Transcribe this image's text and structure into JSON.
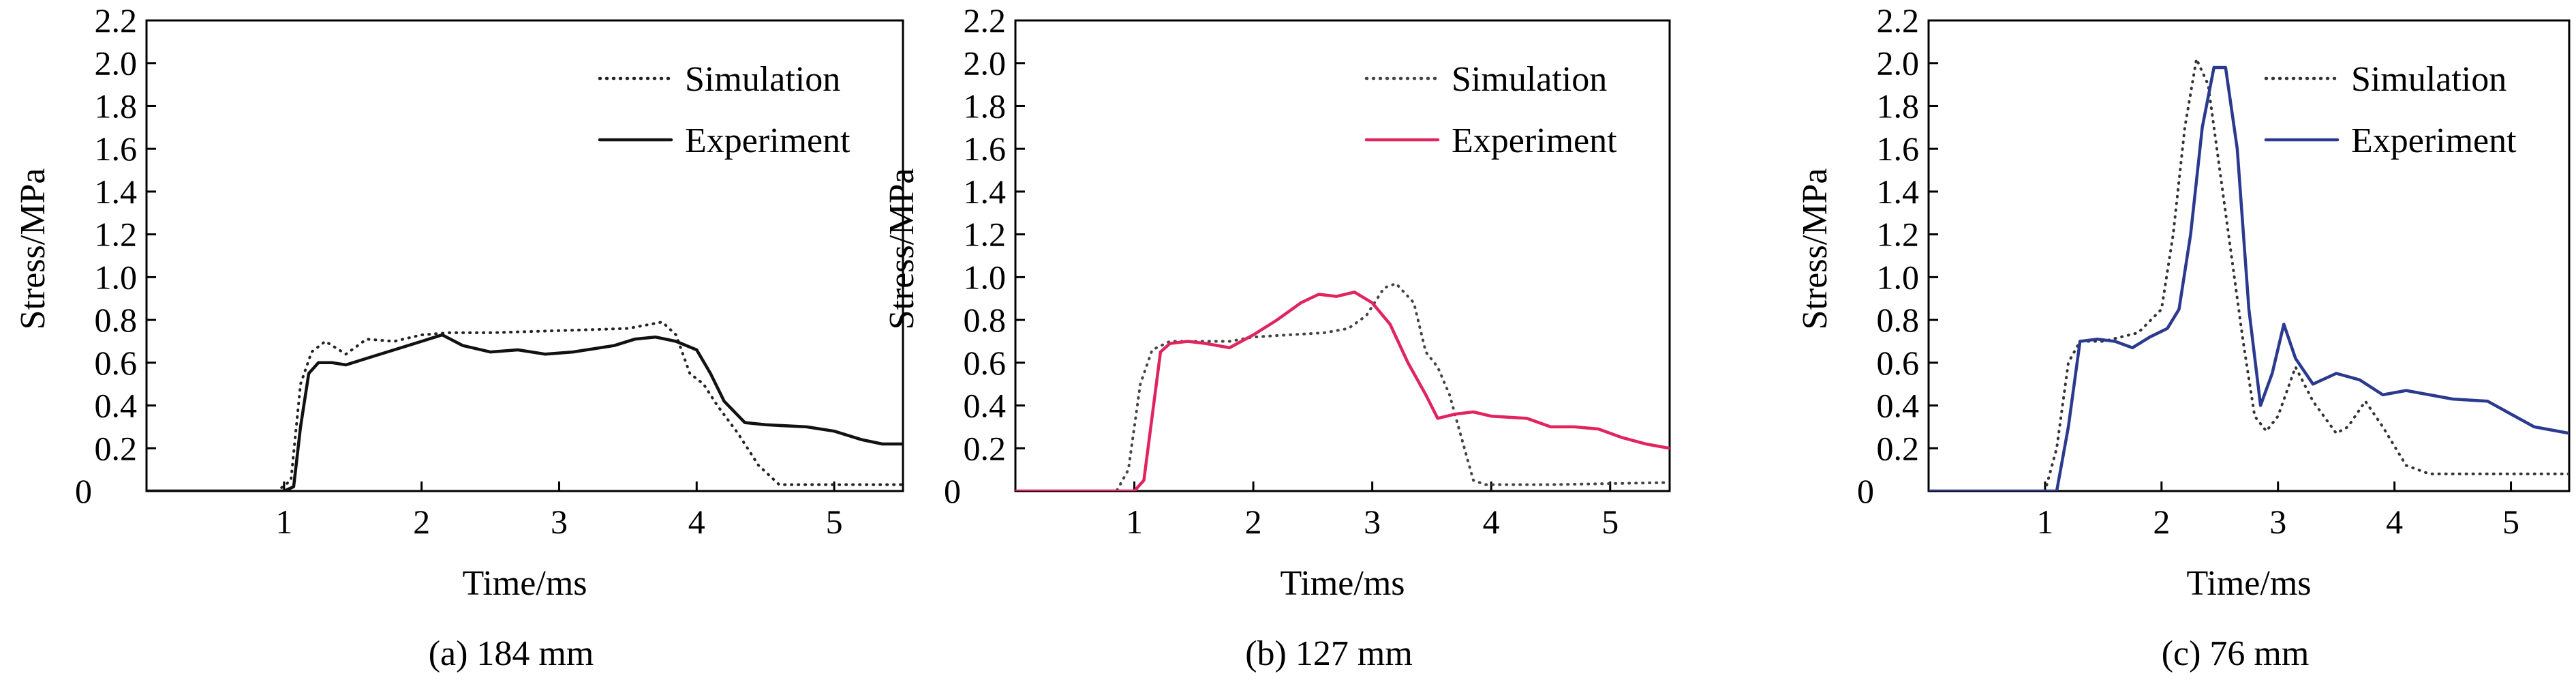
{
  "chart_data": [
    {
      "type": "line",
      "caption": "(a) 184 mm",
      "xlabel": "Time/ms",
      "ylabel": "Stress/MPa",
      "xlim": [
        0,
        5.5
      ],
      "ylim": [
        0,
        2.2
      ],
      "xticks": [
        0,
        1,
        2,
        3,
        4,
        5
      ],
      "yticks": [
        0.2,
        0.4,
        0.6,
        0.8,
        1.0,
        1.2,
        1.4,
        1.6,
        1.8,
        2.0,
        2.2
      ],
      "legend_position": "top-right",
      "series": [
        {
          "name": "Simulation",
          "style": "dotted",
          "color": "#222222",
          "points": [
            [
              0,
              0
            ],
            [
              0.95,
              0
            ],
            [
              1.05,
              0.05
            ],
            [
              1.12,
              0.5
            ],
            [
              1.2,
              0.65
            ],
            [
              1.3,
              0.7
            ],
            [
              1.45,
              0.64
            ],
            [
              1.6,
              0.71
            ],
            [
              1.8,
              0.7
            ],
            [
              2.0,
              0.73
            ],
            [
              2.2,
              0.74
            ],
            [
              2.5,
              0.74
            ],
            [
              3.0,
              0.75
            ],
            [
              3.5,
              0.76
            ],
            [
              3.75,
              0.79
            ],
            [
              3.85,
              0.73
            ],
            [
              3.95,
              0.55
            ],
            [
              4.05,
              0.5
            ],
            [
              4.15,
              0.4
            ],
            [
              4.3,
              0.27
            ],
            [
              4.45,
              0.12
            ],
            [
              4.6,
              0.03
            ],
            [
              5.0,
              0.03
            ],
            [
              5.5,
              0.03
            ]
          ]
        },
        {
          "name": "Experiment",
          "style": "solid",
          "color": "#111111",
          "points": [
            [
              0,
              0
            ],
            [
              1.0,
              0
            ],
            [
              1.07,
              0.02
            ],
            [
              1.12,
              0.3
            ],
            [
              1.18,
              0.55
            ],
            [
              1.25,
              0.6
            ],
            [
              1.35,
              0.6
            ],
            [
              1.45,
              0.59
            ],
            [
              1.6,
              0.62
            ],
            [
              1.8,
              0.66
            ],
            [
              2.0,
              0.7
            ],
            [
              2.15,
              0.73
            ],
            [
              2.3,
              0.68
            ],
            [
              2.5,
              0.65
            ],
            [
              2.7,
              0.66
            ],
            [
              2.9,
              0.64
            ],
            [
              3.1,
              0.65
            ],
            [
              3.4,
              0.68
            ],
            [
              3.55,
              0.71
            ],
            [
              3.7,
              0.72
            ],
            [
              3.85,
              0.7
            ],
            [
              4.0,
              0.66
            ],
            [
              4.1,
              0.55
            ],
            [
              4.2,
              0.42
            ],
            [
              4.35,
              0.32
            ],
            [
              4.5,
              0.31
            ],
            [
              4.8,
              0.3
            ],
            [
              5.0,
              0.28
            ],
            [
              5.2,
              0.24
            ],
            [
              5.35,
              0.22
            ],
            [
              5.5,
              0.22
            ]
          ]
        }
      ]
    },
    {
      "type": "line",
      "caption": "(b) 127 mm",
      "xlabel": "Time/ms",
      "ylabel": "Stress/MPa",
      "xlim": [
        0,
        5.5
      ],
      "ylim": [
        0,
        2.2
      ],
      "xticks": [
        0,
        1,
        2,
        3,
        4,
        5
      ],
      "yticks": [
        0.2,
        0.4,
        0.6,
        0.8,
        1.0,
        1.2,
        1.4,
        1.6,
        1.8,
        2.0,
        2.2
      ],
      "legend_position": "top-right",
      "series": [
        {
          "name": "Simulation",
          "style": "dotted",
          "color": "#444444",
          "points": [
            [
              0,
              0
            ],
            [
              0.85,
              0
            ],
            [
              0.95,
              0.1
            ],
            [
              1.05,
              0.5
            ],
            [
              1.15,
              0.66
            ],
            [
              1.3,
              0.7
            ],
            [
              1.5,
              0.7
            ],
            [
              1.8,
              0.7
            ],
            [
              2.0,
              0.72
            ],
            [
              2.3,
              0.73
            ],
            [
              2.6,
              0.74
            ],
            [
              2.8,
              0.76
            ],
            [
              2.95,
              0.82
            ],
            [
              3.1,
              0.95
            ],
            [
              3.2,
              0.97
            ],
            [
              3.35,
              0.88
            ],
            [
              3.45,
              0.65
            ],
            [
              3.55,
              0.58
            ],
            [
              3.65,
              0.45
            ],
            [
              3.75,
              0.25
            ],
            [
              3.85,
              0.05
            ],
            [
              3.95,
              0.03
            ],
            [
              4.5,
              0.03
            ],
            [
              5.5,
              0.04
            ]
          ]
        },
        {
          "name": "Experiment",
          "style": "solid",
          "color": "#e0245e",
          "points": [
            [
              0,
              0
            ],
            [
              1.0,
              0
            ],
            [
              1.08,
              0.05
            ],
            [
              1.15,
              0.35
            ],
            [
              1.22,
              0.65
            ],
            [
              1.3,
              0.69
            ],
            [
              1.45,
              0.7
            ],
            [
              1.6,
              0.69
            ],
            [
              1.8,
              0.67
            ],
            [
              2.0,
              0.73
            ],
            [
              2.2,
              0.8
            ],
            [
              2.4,
              0.88
            ],
            [
              2.55,
              0.92
            ],
            [
              2.7,
              0.91
            ],
            [
              2.85,
              0.93
            ],
            [
              3.0,
              0.88
            ],
            [
              3.15,
              0.78
            ],
            [
              3.3,
              0.6
            ],
            [
              3.45,
              0.45
            ],
            [
              3.55,
              0.34
            ],
            [
              3.7,
              0.36
            ],
            [
              3.85,
              0.37
            ],
            [
              4.0,
              0.35
            ],
            [
              4.3,
              0.34
            ],
            [
              4.5,
              0.3
            ],
            [
              4.7,
              0.3
            ],
            [
              4.9,
              0.29
            ],
            [
              5.1,
              0.25
            ],
            [
              5.3,
              0.22
            ],
            [
              5.5,
              0.2
            ]
          ]
        }
      ]
    },
    {
      "type": "line",
      "caption": "(c) 76 mm",
      "xlabel": "Time/ms",
      "ylabel": "Stress/MPa",
      "xlim": [
        0,
        5.5
      ],
      "ylim": [
        0,
        2.2
      ],
      "xticks": [
        0,
        1,
        2,
        3,
        4,
        5
      ],
      "yticks": [
        0.2,
        0.4,
        0.6,
        0.8,
        1.0,
        1.2,
        1.4,
        1.6,
        1.8,
        2.0,
        2.2
      ],
      "legend_position": "top-right",
      "series": [
        {
          "name": "Simulation",
          "style": "dotted",
          "color": "#333333",
          "points": [
            [
              0,
              0
            ],
            [
              1.0,
              0
            ],
            [
              1.1,
              0.2
            ],
            [
              1.2,
              0.6
            ],
            [
              1.3,
              0.7
            ],
            [
              1.5,
              0.7
            ],
            [
              1.8,
              0.74
            ],
            [
              2.0,
              0.85
            ],
            [
              2.1,
              1.2
            ],
            [
              2.2,
              1.7
            ],
            [
              2.3,
              2.02
            ],
            [
              2.4,
              1.9
            ],
            [
              2.5,
              1.5
            ],
            [
              2.6,
              1.1
            ],
            [
              2.7,
              0.7
            ],
            [
              2.8,
              0.35
            ],
            [
              2.9,
              0.28
            ],
            [
              3.0,
              0.35
            ],
            [
              3.15,
              0.58
            ],
            [
              3.3,
              0.42
            ],
            [
              3.5,
              0.27
            ],
            [
              3.6,
              0.3
            ],
            [
              3.75,
              0.42
            ],
            [
              3.9,
              0.3
            ],
            [
              4.1,
              0.12
            ],
            [
              4.3,
              0.08
            ],
            [
              4.8,
              0.08
            ],
            [
              5.5,
              0.08
            ]
          ]
        },
        {
          "name": "Experiment",
          "style": "solid",
          "color": "#2b3a8f",
          "points": [
            [
              0,
              0
            ],
            [
              1.1,
              0
            ],
            [
              1.2,
              0.3
            ],
            [
              1.3,
              0.7
            ],
            [
              1.45,
              0.71
            ],
            [
              1.6,
              0.7
            ],
            [
              1.75,
              0.67
            ],
            [
              1.9,
              0.72
            ],
            [
              2.05,
              0.76
            ],
            [
              2.15,
              0.85
            ],
            [
              2.25,
              1.2
            ],
            [
              2.35,
              1.7
            ],
            [
              2.45,
              1.98
            ],
            [
              2.55,
              1.98
            ],
            [
              2.65,
              1.6
            ],
            [
              2.75,
              0.85
            ],
            [
              2.85,
              0.4
            ],
            [
              2.95,
              0.55
            ],
            [
              3.05,
              0.78
            ],
            [
              3.15,
              0.62
            ],
            [
              3.3,
              0.5
            ],
            [
              3.5,
              0.55
            ],
            [
              3.7,
              0.52
            ],
            [
              3.9,
              0.45
            ],
            [
              4.1,
              0.47
            ],
            [
              4.3,
              0.45
            ],
            [
              4.5,
              0.43
            ],
            [
              4.8,
              0.42
            ],
            [
              5.0,
              0.36
            ],
            [
              5.2,
              0.3
            ],
            [
              5.5,
              0.27
            ]
          ]
        }
      ]
    }
  ]
}
